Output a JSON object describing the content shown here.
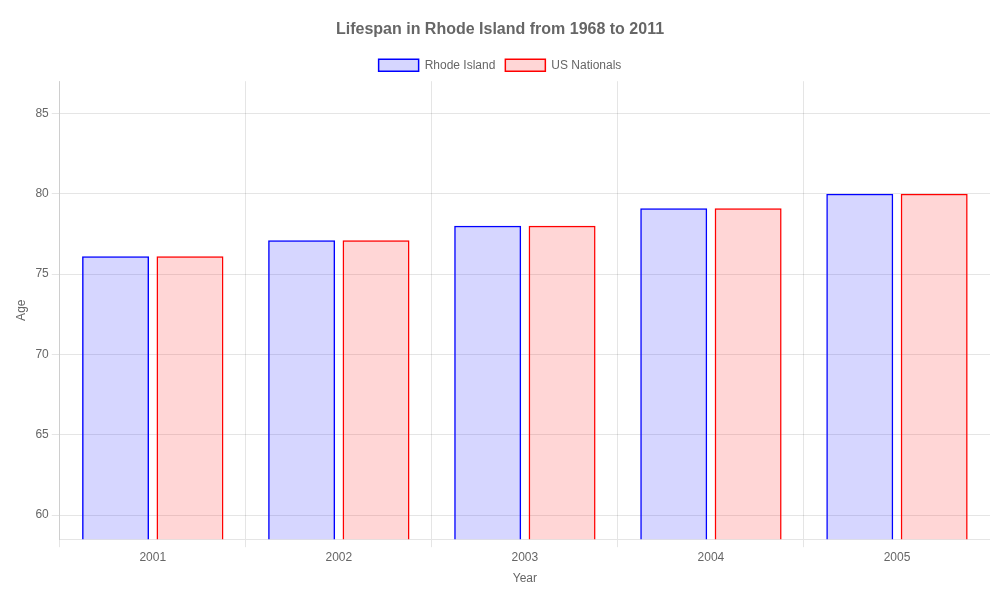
{
  "chart_data": {
    "type": "bar",
    "title": "Lifespan in Rhode Island from 1968 to 2011",
    "x_label": "Year",
    "y_label": "Age",
    "categories": [
      "2001",
      "2002",
      "2003",
      "2004",
      "2005"
    ],
    "series": [
      {
        "name": "Rhode Island",
        "color": "#0000FF",
        "values": [
          76.1,
          77.1,
          78.0,
          79.1,
          80.0
        ]
      },
      {
        "name": "US Nationals",
        "color": "#FF0000",
        "values": [
          76.1,
          77.1,
          78.0,
          79.1,
          80.0
        ]
      }
    ],
    "ylim": [
      58.5,
      87
    ],
    "yticks": [
      60,
      65,
      70,
      75,
      80,
      85
    ],
    "grid": true,
    "legend": "top"
  }
}
